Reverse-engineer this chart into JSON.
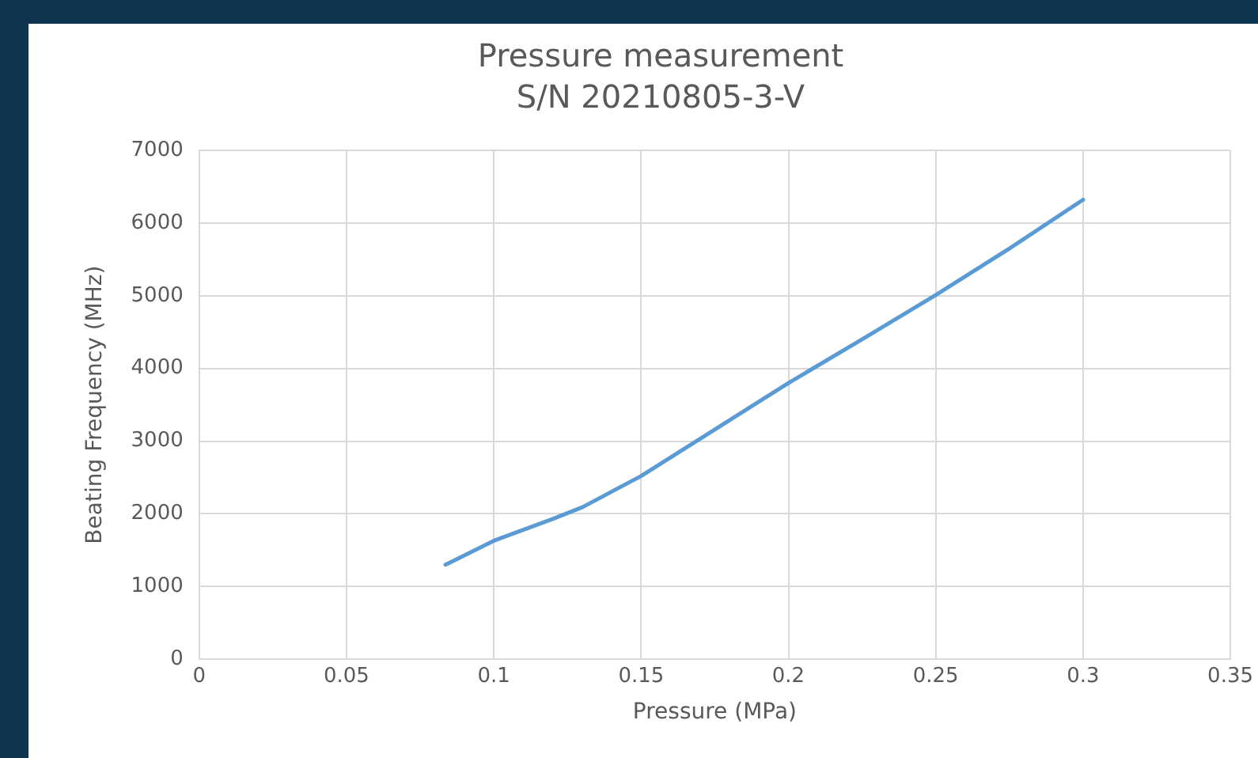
{
  "chart_data": {
    "type": "line",
    "title": "Pressure measurement",
    "subtitle": "S/N 20210805-3-V",
    "xlabel": "Pressure (MPa)",
    "ylabel": "Beating Frequency (MHz)",
    "x": [
      0.0836,
      0.1,
      0.12,
      0.13,
      0.15,
      0.175,
      0.2,
      0.225,
      0.25,
      0.275,
      0.3
    ],
    "series": [
      {
        "color": "#5b9bd5",
        "values": [
          1300,
          1630,
          1930,
          2090,
          2520,
          3160,
          3800,
          4400,
          5010,
          5650,
          6320
        ]
      }
    ],
    "xlim": [
      0,
      0.35
    ],
    "xticks": [
      0,
      0.05,
      0.1,
      0.15,
      0.2,
      0.25,
      0.3,
      0.35
    ],
    "ylim": [
      0,
      7000
    ],
    "yticks": [
      0,
      1000,
      2000,
      3000,
      4000,
      5000,
      6000,
      7000
    ],
    "grid": true,
    "legend": false,
    "marker": "none",
    "line_style": "solid"
  }
}
